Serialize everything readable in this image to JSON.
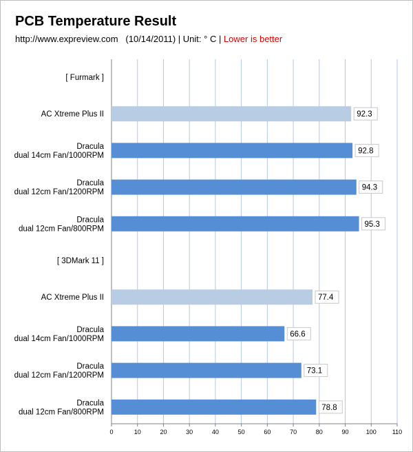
{
  "chart_data": {
    "type": "bar",
    "orientation": "horizontal",
    "title": "PCB Temperature Result",
    "subtitle": {
      "source": "http://www.expreview.com",
      "date": "(10/14/2011)",
      "unit": "| Unit: ° C |",
      "note": "Lower is better"
    },
    "xlim": [
      0,
      110
    ],
    "xticks": [
      0,
      10,
      20,
      30,
      40,
      50,
      60,
      70,
      80,
      90,
      100,
      110
    ],
    "grid": true,
    "rows": [
      {
        "label": [
          "[ Furmark ]"
        ],
        "value": null,
        "header": true
      },
      {
        "label": [
          "AC Xtreme Plus II"
        ],
        "value": 92.3,
        "color": "#b8cce4"
      },
      {
        "label": [
          "Dracula",
          "dual 14cm Fan/1000RPM"
        ],
        "value": 92.8,
        "color": "#558ed5"
      },
      {
        "label": [
          "Dracula",
          "dual 12cm Fan/1200RPM"
        ],
        "value": 94.3,
        "color": "#558ed5"
      },
      {
        "label": [
          "Dracula",
          "dual 12cm Fan/800RPM"
        ],
        "value": 95.3,
        "color": "#558ed5"
      },
      {
        "label": [
          "[ 3DMark 11 ]"
        ],
        "value": null,
        "header": true
      },
      {
        "label": [
          "AC Xtreme Plus II"
        ],
        "value": 77.4,
        "color": "#b8cce4"
      },
      {
        "label": [
          "Dracula",
          "dual 14cm Fan/1000RPM"
        ],
        "value": 66.6,
        "color": "#558ed5"
      },
      {
        "label": [
          "Dracula",
          "dual 12cm Fan/1200RPM"
        ],
        "value": 73.1,
        "color": "#558ed5"
      },
      {
        "label": [
          "Dracula",
          "dual 12cm Fan/800RPM"
        ],
        "value": 78.8,
        "color": "#558ed5"
      }
    ]
  }
}
